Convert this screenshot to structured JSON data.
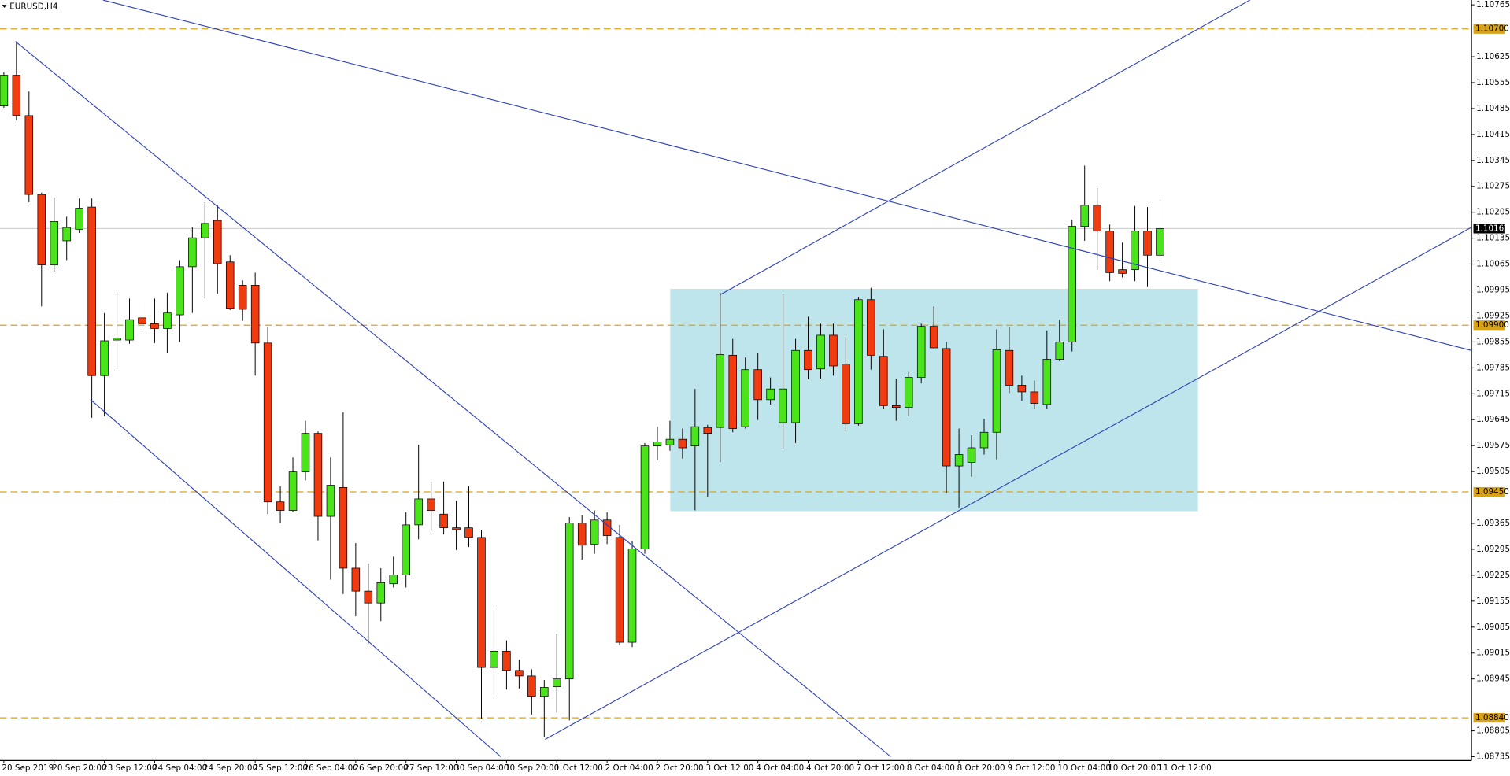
{
  "chart_data": {
    "type": "candlestick",
    "title": "EURUSD,H4",
    "categories": [
      "20 Sep 2019",
      null,
      null,
      null,
      "20 Sep 20:00",
      null,
      null,
      null,
      "23 Sep 12:00",
      null,
      null,
      null,
      "24 Sep 04:00",
      null,
      null,
      null,
      "24 Sep 20:00",
      null,
      null,
      null,
      "25 Sep 12:00",
      null,
      null,
      null,
      "26 Sep 04:00",
      null,
      null,
      null,
      "26 Sep 20:00",
      null,
      null,
      null,
      "27 Sep 12:00",
      null,
      null,
      null,
      "30 Sep 04:00",
      null,
      null,
      null,
      "30 Sep 20:00",
      null,
      null,
      null,
      "1 Oct 12:00",
      null,
      null,
      null,
      "2 Oct 04:00",
      null,
      null,
      null,
      "2 Oct 20:00",
      null,
      null,
      null,
      "3 Oct 12:00",
      null,
      null,
      null,
      "4 Oct 04:00",
      null,
      null,
      null,
      "4 Oct 20:00",
      null,
      null,
      null,
      "7 Oct 12:00",
      null,
      null,
      null,
      "8 Oct 04:00",
      null,
      null,
      null,
      "8 Oct 20:00",
      null,
      null,
      null,
      "9 Oct 12:00",
      null,
      null,
      null,
      "10 Oct 04:00",
      null,
      null,
      null,
      "10 Oct 20:00",
      null,
      null,
      null,
      "11 Oct 12:00"
    ],
    "open": [
      1.10492,
      1.10575,
      1.10466,
      1.10253,
      1.10063,
      1.10128,
      1.10159,
      1.10219,
      1.09764,
      1.0986,
      1.0986,
      1.0992,
      1.09904,
      1.09891,
      1.09928,
      1.10058,
      1.10136,
      1.10183,
      1.10071,
      1.10008,
      1.10008,
      1.09852,
      1.09423,
      1.094,
      1.09504,
      1.09608,
      1.09384,
      1.09462,
      1.09244,
      1.09182,
      1.0915,
      1.09202,
      1.09226,
      1.09361,
      1.09431,
      1.0939,
      1.09353,
      1.09353,
      1.09327,
      1.08976,
      1.0902,
      1.08968,
      1.08953,
      1.08898,
      1.08924,
      1.08945,
      1.09366,
      1.09309,
      1.09374,
      1.09327,
      1.09044,
      1.09296,
      1.09574,
      1.09577,
      1.09592,
      1.09574,
      1.09624,
      1.09624,
      1.09819,
      1.09626,
      1.0978,
      1.09699,
      1.09637,
      1.09637,
      1.09832,
      1.09782,
      1.09873,
      1.09795,
      1.09634,
      1.09969,
      1.09816,
      1.09683,
      1.09678,
      1.09759,
      1.09897,
      1.09837,
      1.0952,
      1.0953,
      1.09569,
      1.09611,
      1.09832,
      1.09738,
      1.0972,
      1.09686,
      1.09808,
      1.09855,
      1.10167,
      1.10224,
      1.10154,
      1.1005,
      1.1005,
      1.10154,
      1.10089
    ],
    "high": [
      1.10583,
      1.10666,
      1.10531,
      1.10258,
      1.10245,
      1.10193,
      1.10242,
      1.10242,
      1.09933,
      1.0999,
      1.09972,
      1.09962,
      1.09972,
      1.09988,
      1.10076,
      1.10164,
      1.10232,
      1.10224,
      1.10089,
      1.10021,
      1.10042,
      1.09894,
      1.09465,
      1.09543,
      1.09642,
      1.09613,
      1.09543,
      1.09665,
      1.09312,
      1.09257,
      1.09244,
      1.09275,
      1.09395,
      1.09577,
      1.09478,
      1.09478,
      1.09426,
      1.09465,
      1.09348,
      1.09132,
      1.09049,
      1.08997,
      1.08971,
      1.08942,
      1.09067,
      1.09382,
      1.09387,
      1.094,
      1.09395,
      1.09361,
      1.09317,
      1.09582,
      1.09626,
      1.09642,
      1.09621,
      1.09728,
      1.09631,
      1.09988,
      1.09863,
      1.09813,
      1.09826,
      1.09759,
      1.09985,
      1.09863,
      1.09923,
      1.09904,
      1.09904,
      1.09868,
      1.09975,
      1.10001,
      1.09889,
      1.09756,
      1.09774,
      1.09904,
      1.09951,
      1.09855,
      1.09621,
      1.09603,
      1.09647,
      1.09889,
      1.09894,
      1.09764,
      1.09751,
      1.09886,
      1.09915,
      1.10185,
      1.10331,
      1.10271,
      1.10172,
      1.10123,
      1.10222,
      1.10219,
      1.10245
    ],
    "low": [
      1.10487,
      1.10453,
      1.10232,
      1.09951,
      1.10045,
      1.10076,
      1.10149,
      1.0965,
      1.09655,
      1.09782,
      1.0985,
      1.09881,
      1.09852,
      1.09826,
      1.09855,
      1.09933,
      1.09972,
      1.09985,
      1.09941,
      1.09912,
      1.09764,
      1.0939,
      1.09366,
      1.09395,
      1.09481,
      1.09319,
      1.09213,
      1.09174,
      1.09114,
      1.09041,
      1.09101,
      1.09192,
      1.09192,
      1.09322,
      1.09348,
      1.09335,
      1.09293,
      1.09301,
      1.08836,
      1.08901,
      1.08916,
      1.08919,
      1.08849,
      1.08789,
      1.08854,
      1.08833,
      1.09267,
      1.09283,
      1.09309,
      1.09036,
      1.09031,
      1.09283,
      1.09535,
      1.09561,
      1.0954,
      1.094,
      1.09436,
      1.0953,
      1.09611,
      1.09621,
      1.09644,
      1.09686,
      1.09566,
      1.09582,
      1.09754,
      1.09756,
      1.09764,
      1.09613,
      1.09629,
      1.0978,
      1.09673,
      1.09642,
      1.09655,
      1.09743,
      1.09837,
      1.09447,
      1.09408,
      1.09491,
      1.09551,
      1.09538,
      1.09717,
      1.09696,
      1.09673,
      1.09673,
      1.09803,
      1.09829,
      1.10128,
      1.1005,
      1.10019,
      1.10029,
      1.10019,
      1.10003,
      1.10068
    ],
    "close": [
      1.10575,
      1.10466,
      1.10253,
      1.10063,
      1.1018,
      1.10164,
      1.10216,
      1.09764,
      1.09858,
      1.09865,
      1.09915,
      1.09904,
      1.09891,
      1.09933,
      1.10058,
      1.10136,
      1.10175,
      1.10066,
      1.09946,
      1.09943,
      1.09852,
      1.09423,
      1.094,
      1.09504,
      1.09608,
      1.09384,
      1.09468,
      1.09244,
      1.09182,
      1.0915,
      1.09205,
      1.09226,
      1.09361,
      1.09431,
      1.094,
      1.09353,
      1.09348,
      1.09327,
      1.08976,
      1.0902,
      1.08968,
      1.08953,
      1.08898,
      1.08922,
      1.08945,
      1.09366,
      1.09306,
      1.09374,
      1.09332,
      1.09044,
      1.09296,
      1.09574,
      1.09585,
      1.09592,
      1.09569,
      1.09626,
      1.09608,
      1.09821,
      1.09621,
      1.0978,
      1.09699,
      1.09728,
      1.09728,
      1.09832,
      1.0978,
      1.09873,
      1.0979,
      1.09634,
      1.09969,
      1.09819,
      1.09683,
      1.09678,
      1.09759,
      1.09897,
      1.09839,
      1.0952,
      1.09551,
      1.09569,
      1.09611,
      1.09834,
      1.09738,
      1.0972,
      1.09689,
      1.09808,
      1.09855,
      1.10167,
      1.10224,
      1.10154,
      1.10042,
      1.1004,
      1.10154,
      1.10089,
      1.10161
    ],
    "up_color": "#4be31a",
    "down_color": "#f03a10",
    "ylim": [
      1.08735,
      1.10765
    ],
    "yticks": [
      1.10765,
      1.10625,
      1.10555,
      1.10485,
      1.10415,
      1.10345,
      1.10275,
      1.10205,
      1.10135,
      1.10065,
      1.09995,
      1.09925,
      1.09855,
      1.09785,
      1.09715,
      1.09645,
      1.09575,
      1.09505,
      1.09365,
      1.09295,
      1.09225,
      1.09155,
      1.09085,
      1.09015,
      1.08945,
      1.08805,
      1.08735
    ],
    "levels": [
      {
        "value": 1.107,
        "label": "1.10700"
      },
      {
        "value": 1.099,
        "label": "1.09900"
      },
      {
        "value": 1.0945,
        "label": "1.09450"
      },
      {
        "value": 1.0884,
        "label": "1.08840"
      }
    ],
    "level_color": "#d9a21b",
    "current_price": 1.10161
  }
}
